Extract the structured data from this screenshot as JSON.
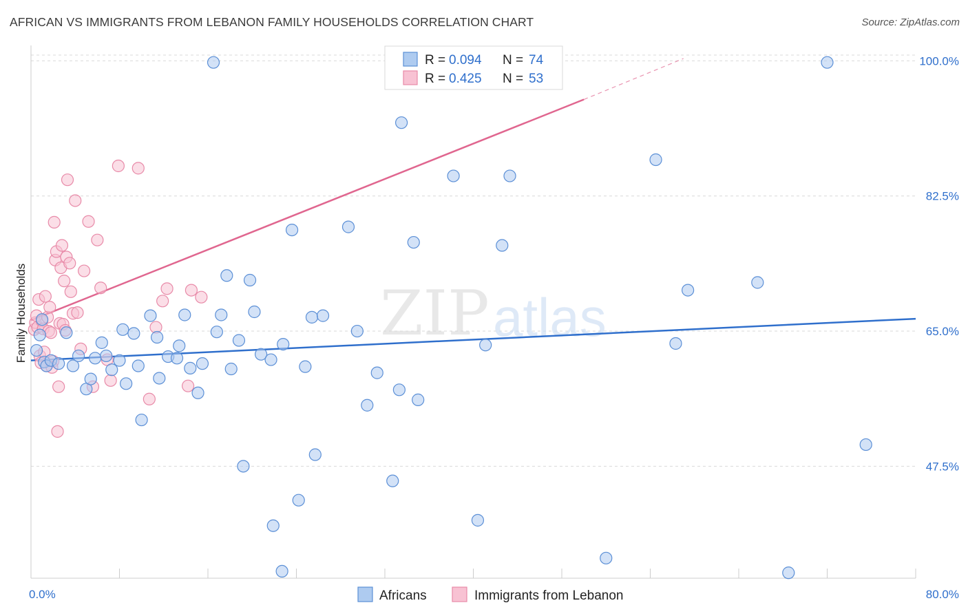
{
  "title": "AFRICAN VS IMMIGRANTS FROM LEBANON FAMILY HOUSEHOLDS CORRELATION CHART",
  "source": "Source: ZipAtlas.com",
  "watermark": {
    "zip": "ZIP",
    "atlas": "atlas"
  },
  "colors": {
    "blue_fill": "#aecbf0",
    "blue_stroke": "#5b8fd6",
    "blue_line": "#2f6fcc",
    "pink_fill": "#f8c2d3",
    "pink_stroke": "#e88aa8",
    "pink_line": "#e0668f",
    "grid": "#d9d9d9",
    "tick_text": "#2f6fcc"
  },
  "legend": {
    "r_label": "R =",
    "n_label": "N =",
    "series": [
      {
        "r": "0.094",
        "n": "74"
      },
      {
        "r": "0.425",
        "n": "53"
      }
    ]
  },
  "chart_data": {
    "type": "scatter",
    "title": "AFRICAN VS IMMIGRANTS FROM LEBANON FAMILY HOUSEHOLDS CORRELATION CHART",
    "xlabel": "",
    "ylabel": "Family Households",
    "xlim": [
      0,
      80
    ],
    "ylim": [
      33,
      102
    ],
    "x_tick_labels": [
      "0.0%",
      "80.0%"
    ],
    "y_ticks": [
      47.5,
      65.0,
      82.5,
      100.0
    ],
    "y_tick_labels": [
      "47.5%",
      "65.0%",
      "82.5%",
      "100.0%"
    ],
    "grid": true,
    "legend_position": "top-center",
    "series": [
      {
        "name": "Africans",
        "r": 0.094,
        "n": 74,
        "trend": {
          "x0": 0,
          "y0": 61.2,
          "x1": 80,
          "y1": 66.6
        },
        "points": [
          [
            0.5,
            62.5
          ],
          [
            0.8,
            64.5
          ],
          [
            1.0,
            66.5
          ],
          [
            1.2,
            61.0
          ],
          [
            1.4,
            60.5
          ],
          [
            1.8,
            61.2
          ],
          [
            2.5,
            60.8
          ],
          [
            3.2,
            64.8
          ],
          [
            3.8,
            60.5
          ],
          [
            4.3,
            61.8
          ],
          [
            5.0,
            57.5
          ],
          [
            5.4,
            58.8
          ],
          [
            5.8,
            61.5
          ],
          [
            6.4,
            63.5
          ],
          [
            6.8,
            61.8
          ],
          [
            7.3,
            60.0
          ],
          [
            8.0,
            61.2
          ],
          [
            8.3,
            65.2
          ],
          [
            8.6,
            58.2
          ],
          [
            9.3,
            64.7
          ],
          [
            9.7,
            60.5
          ],
          [
            10.0,
            53.5
          ],
          [
            10.8,
            67.0
          ],
          [
            11.4,
            64.2
          ],
          [
            11.6,
            58.9
          ],
          [
            12.4,
            61.7
          ],
          [
            13.2,
            61.5
          ],
          [
            13.4,
            63.1
          ],
          [
            13.9,
            67.1
          ],
          [
            14.4,
            60.2
          ],
          [
            15.1,
            57.0
          ],
          [
            15.5,
            60.8
          ],
          [
            16.5,
            99.8
          ],
          [
            16.8,
            64.9
          ],
          [
            17.2,
            67.1
          ],
          [
            17.7,
            72.2
          ],
          [
            18.1,
            60.1
          ],
          [
            18.8,
            63.8
          ],
          [
            19.2,
            47.5
          ],
          [
            19.8,
            71.6
          ],
          [
            20.2,
            67.5
          ],
          [
            20.8,
            62.0
          ],
          [
            21.7,
            61.3
          ],
          [
            21.9,
            39.8
          ],
          [
            22.7,
            33.9
          ],
          [
            22.8,
            63.3
          ],
          [
            23.6,
            78.1
          ],
          [
            24.2,
            43.1
          ],
          [
            24.8,
            60.4
          ],
          [
            25.4,
            66.8
          ],
          [
            25.7,
            49.0
          ],
          [
            26.4,
            67.0
          ],
          [
            28.7,
            78.5
          ],
          [
            29.5,
            65.0
          ],
          [
            30.4,
            55.4
          ],
          [
            31.3,
            59.6
          ],
          [
            32.7,
            45.6
          ],
          [
            33.3,
            57.4
          ],
          [
            33.5,
            92.0
          ],
          [
            34.6,
            76.5
          ],
          [
            35.0,
            56.1
          ],
          [
            38.2,
            85.1
          ],
          [
            40.4,
            40.5
          ],
          [
            41.1,
            63.2
          ],
          [
            42.6,
            76.1
          ],
          [
            43.3,
            85.1
          ],
          [
            52.0,
            35.6
          ],
          [
            56.5,
            87.2
          ],
          [
            58.3,
            63.4
          ],
          [
            59.4,
            70.3
          ],
          [
            65.7,
            71.3
          ],
          [
            68.5,
            33.7
          ],
          [
            72.0,
            99.8
          ],
          [
            75.5,
            50.3
          ]
        ]
      },
      {
        "name": "Immigrants from Lebanon",
        "r": 0.425,
        "n": 53,
        "trend": {
          "x0": 0,
          "y0": 66.4,
          "x1": 50,
          "y1": 95.0,
          "dashed_to": {
            "x": 59,
            "y": 100.3
          }
        },
        "points": [
          [
            0.3,
            65.2
          ],
          [
            0.4,
            66.1
          ],
          [
            0.5,
            67.0
          ],
          [
            0.6,
            65.5
          ],
          [
            0.7,
            69.1
          ],
          [
            0.8,
            61.8
          ],
          [
            0.9,
            60.9
          ],
          [
            1.0,
            66.3
          ],
          [
            1.1,
            65.3
          ],
          [
            1.2,
            62.3
          ],
          [
            1.3,
            69.5
          ],
          [
            1.4,
            60.5
          ],
          [
            1.5,
            66.8
          ],
          [
            1.6,
            65.0
          ],
          [
            1.7,
            68.1
          ],
          [
            1.8,
            64.8
          ],
          [
            2.0,
            61.1
          ],
          [
            2.2,
            74.2
          ],
          [
            2.3,
            75.3
          ],
          [
            2.5,
            57.8
          ],
          [
            2.6,
            66.0
          ],
          [
            2.7,
            73.2
          ],
          [
            2.8,
            76.1
          ],
          [
            2.9,
            65.9
          ],
          [
            3.0,
            71.5
          ],
          [
            3.1,
            65.1
          ],
          [
            3.2,
            74.6
          ],
          [
            3.3,
            84.6
          ],
          [
            3.5,
            73.8
          ],
          [
            3.6,
            70.1
          ],
          [
            3.8,
            67.3
          ],
          [
            4.0,
            81.9
          ],
          [
            4.2,
            67.4
          ],
          [
            4.5,
            62.7
          ],
          [
            4.8,
            72.8
          ],
          [
            5.2,
            79.2
          ],
          [
            5.6,
            57.8
          ],
          [
            6.0,
            76.8
          ],
          [
            6.3,
            70.6
          ],
          [
            6.9,
            61.3
          ],
          [
            7.2,
            58.6
          ],
          [
            7.9,
            86.4
          ],
          [
            9.7,
            86.1
          ],
          [
            10.7,
            56.2
          ],
          [
            11.3,
            65.5
          ],
          [
            11.9,
            68.9
          ],
          [
            12.3,
            70.5
          ],
          [
            14.2,
            57.9
          ],
          [
            14.5,
            70.3
          ],
          [
            15.4,
            69.4
          ],
          [
            2.1,
            79.1
          ],
          [
            2.4,
            52.0
          ],
          [
            1.9,
            60.3
          ]
        ]
      }
    ]
  },
  "bottom_legend": [
    "Africans",
    "Immigrants from Lebanon"
  ]
}
